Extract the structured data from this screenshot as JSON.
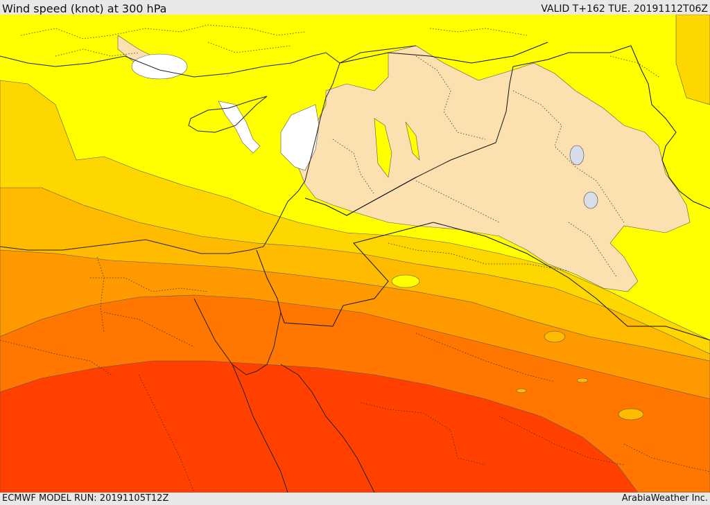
{
  "header": {
    "title": "Wind speed (knot) at 300 hPa",
    "valid": "VALID T+162 TUE. 20191112T06Z"
  },
  "footer": {
    "model_run": "ECMWF MODEL RUN: 20191105T12Z",
    "credit": "ArabiaWeather Inc."
  },
  "colors": {
    "calm": "#ffffff",
    "light": "#fde0b0",
    "band1": "#ffff00",
    "band2": "#ffd700",
    "band3": "#ffbb00",
    "band4": "#ff9900",
    "band5": "#ff7700",
    "band6": "#ff4000"
  }
}
